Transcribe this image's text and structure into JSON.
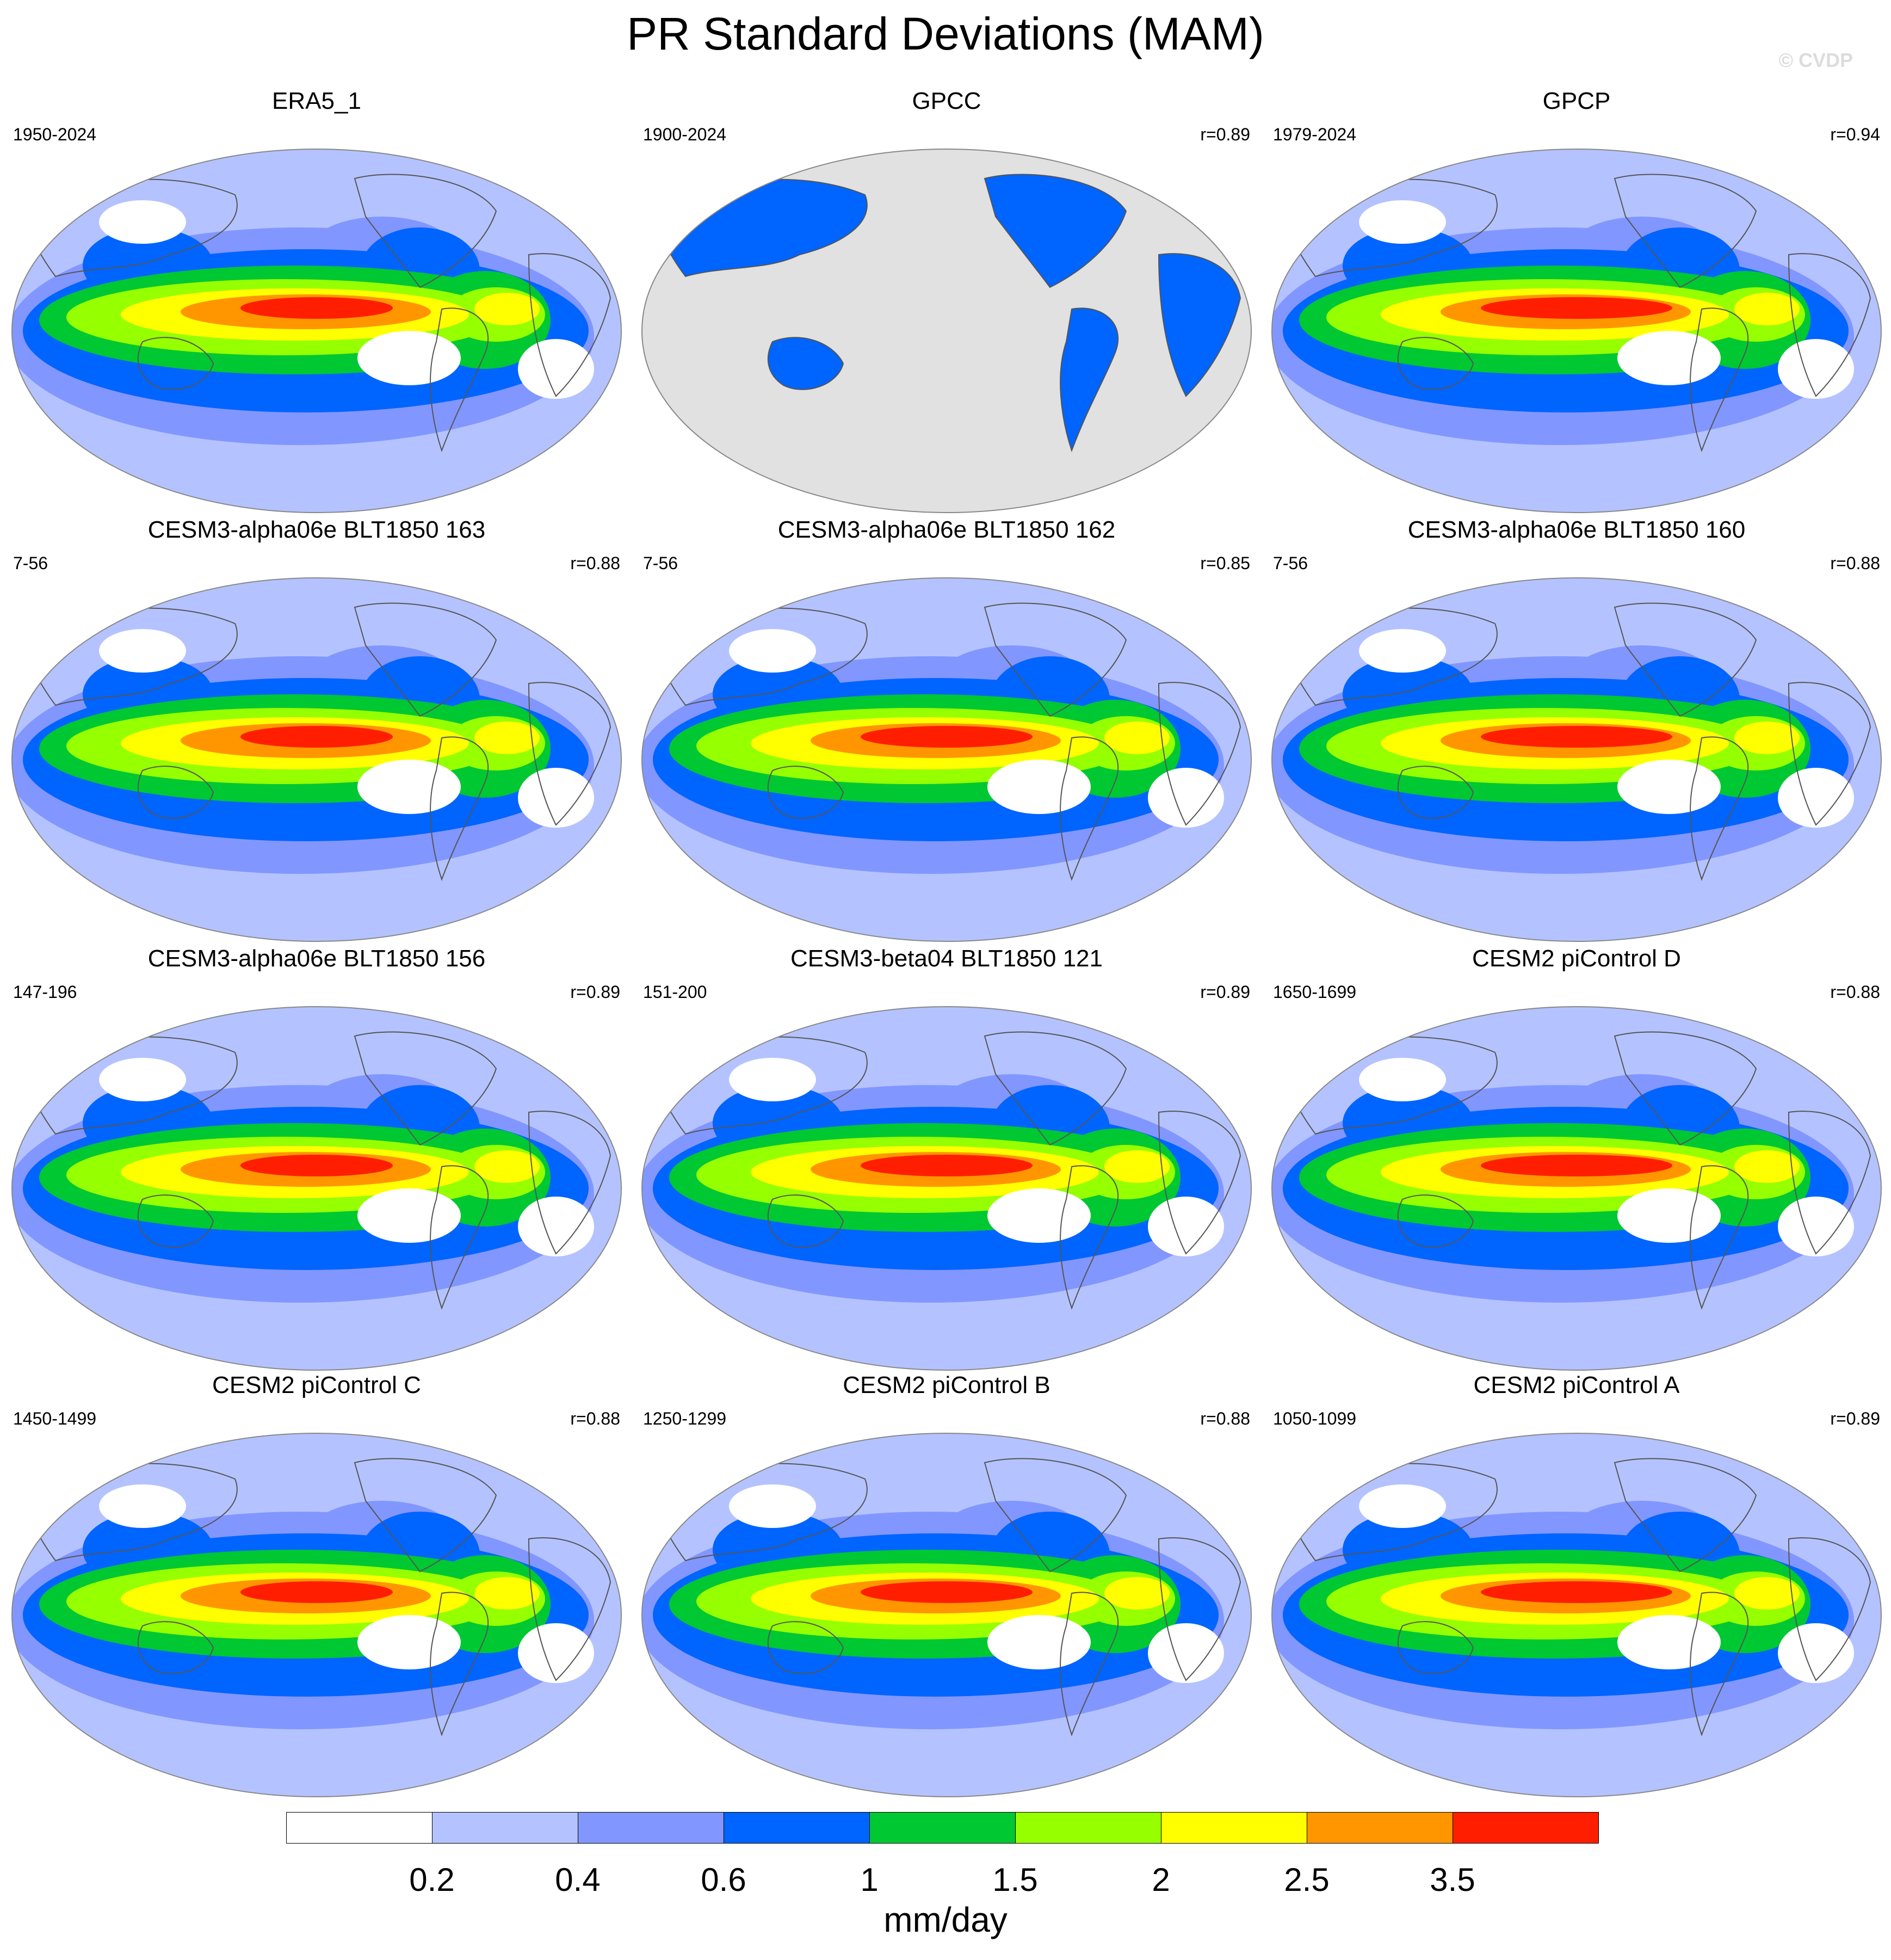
{
  "title": "PR Standard Deviations (MAM)",
  "watermark": "© CVDP",
  "units": "mm/day",
  "colors": {
    "levels": [
      "#ffffff",
      "#b4c3ff",
      "#8296ff",
      "#0064ff",
      "#00c832",
      "#96ff00",
      "#ffff00",
      "#ff9600",
      "#ff1e00"
    ],
    "land_mask": "#e1e1e1",
    "coastline": "#555555"
  },
  "colorbar": {
    "labels": [
      "0.2",
      "0.4",
      "0.6",
      "1",
      "1.5",
      "2",
      "2.5",
      "3.5"
    ]
  },
  "panels": [
    {
      "title": "ERA5_1",
      "period": "1950-2024",
      "r": ""
    },
    {
      "title": "GPCC",
      "period": "1900-2024",
      "r": "r=0.89",
      "land_only": true
    },
    {
      "title": "GPCP",
      "period": "1979-2024",
      "r": "r=0.94"
    },
    {
      "title": "CESM3-alpha06e BLT1850 163",
      "period": "7-56",
      "r": "r=0.88"
    },
    {
      "title": "CESM3-alpha06e BLT1850 162",
      "period": "7-56",
      "r": "r=0.85"
    },
    {
      "title": "CESM3-alpha06e BLT1850 160",
      "period": "7-56",
      "r": "r=0.88"
    },
    {
      "title": "CESM3-alpha06e BLT1850 156",
      "period": "147-196",
      "r": "r=0.89"
    },
    {
      "title": "CESM3-beta04 BLT1850 121",
      "period": "151-200",
      "r": "r=0.89"
    },
    {
      "title": "CESM2 piControl D",
      "period": "1650-1699",
      "r": "r=0.88"
    },
    {
      "title": "CESM2 piControl C",
      "period": "1450-1499",
      "r": "r=0.88"
    },
    {
      "title": "CESM2 piControl B",
      "period": "1250-1299",
      "r": "r=0.88"
    },
    {
      "title": "CESM2 piControl A",
      "period": "1050-1099",
      "r": "r=0.89"
    }
  ]
}
